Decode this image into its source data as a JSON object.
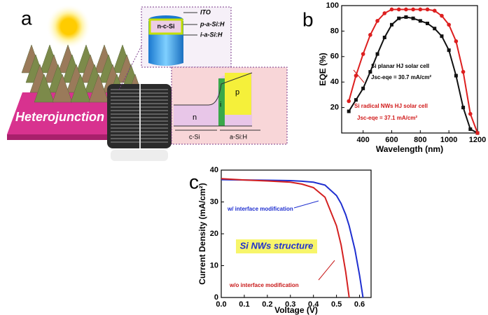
{
  "panel_a": {
    "label": "a",
    "banner": "Heterojunction",
    "layers": [
      "ITO",
      "p-a-Si:H",
      "i-a-Si:H"
    ],
    "core": "n-c-Si",
    "bands": [
      "n",
      "i",
      "p"
    ],
    "regions": [
      "c-Si",
      "a-Si:H"
    ]
  },
  "chart_data": [
    {
      "type": "line",
      "panel_label": "b",
      "x_label": "Wavelength (nm)",
      "y_label": "EQE (%)",
      "x": [
        300,
        350,
        400,
        450,
        500,
        550,
        600,
        650,
        700,
        750,
        800,
        850,
        900,
        950,
        1000,
        1050,
        1100,
        1150,
        1200
      ],
      "series": [
        {
          "name": "Si planar HJ solar cell",
          "color": "#111111",
          "marker": "square",
          "values": [
            17,
            26,
            35,
            48,
            62,
            75,
            85,
            90,
            91,
            90,
            88,
            86,
            82,
            76,
            65,
            45,
            20,
            3,
            0
          ]
        },
        {
          "name": "Si radical NWs HJ solar cell",
          "color": "#dd1f1f",
          "marker": "circle",
          "values": [
            25,
            45,
            62,
            77,
            88,
            94,
            97,
            97,
            97,
            97,
            97,
            97,
            96,
            92,
            85,
            72,
            48,
            15,
            0
          ]
        }
      ],
      "annotations": [
        "Jsc-eqe = 30.7 mA/cm²",
        "Jsc-eqe = 37.1 mA/cm²"
      ],
      "xlim": [
        250,
        1200
      ],
      "ylim": [
        0,
        100
      ],
      "xticks": [
        400,
        600,
        800,
        1000,
        1200
      ],
      "yticks": [
        20,
        40,
        60,
        80,
        100
      ]
    },
    {
      "type": "line",
      "panel_label": "c",
      "x_label": "Voltage (V)",
      "y_label": "Current Density (mA/cm²)",
      "x": [
        0,
        0.1,
        0.2,
        0.3,
        0.35,
        0.4,
        0.45,
        0.5,
        0.52,
        0.54,
        0.555,
        0.58,
        0.6,
        0.615
      ],
      "series": [
        {
          "name": "w/ interface modification",
          "color": "#1f2fd0",
          "values": [
            37,
            36.9,
            36.8,
            36.7,
            36.5,
            36.2,
            35.3,
            32,
            29.5,
            26,
            22.5,
            15,
            7,
            0
          ]
        },
        {
          "name": "w/o interface modification",
          "color": "#d42020",
          "values": [
            37.3,
            36.9,
            36.6,
            36.2,
            35.6,
            34.5,
            31.5,
            22.5,
            16.5,
            8,
            0,
            null,
            null,
            null
          ]
        }
      ],
      "annotations": [
        "Si NWs structure"
      ],
      "xlim": [
        0,
        0.65
      ],
      "ylim": [
        0,
        40
      ],
      "xticks": [
        {
          "value": 0,
          "label": "0.0"
        },
        0.1,
        0.2,
        0.3,
        0.4,
        0.5,
        0.6
      ],
      "yticks": [
        0,
        10,
        20,
        30,
        40
      ]
    }
  ]
}
